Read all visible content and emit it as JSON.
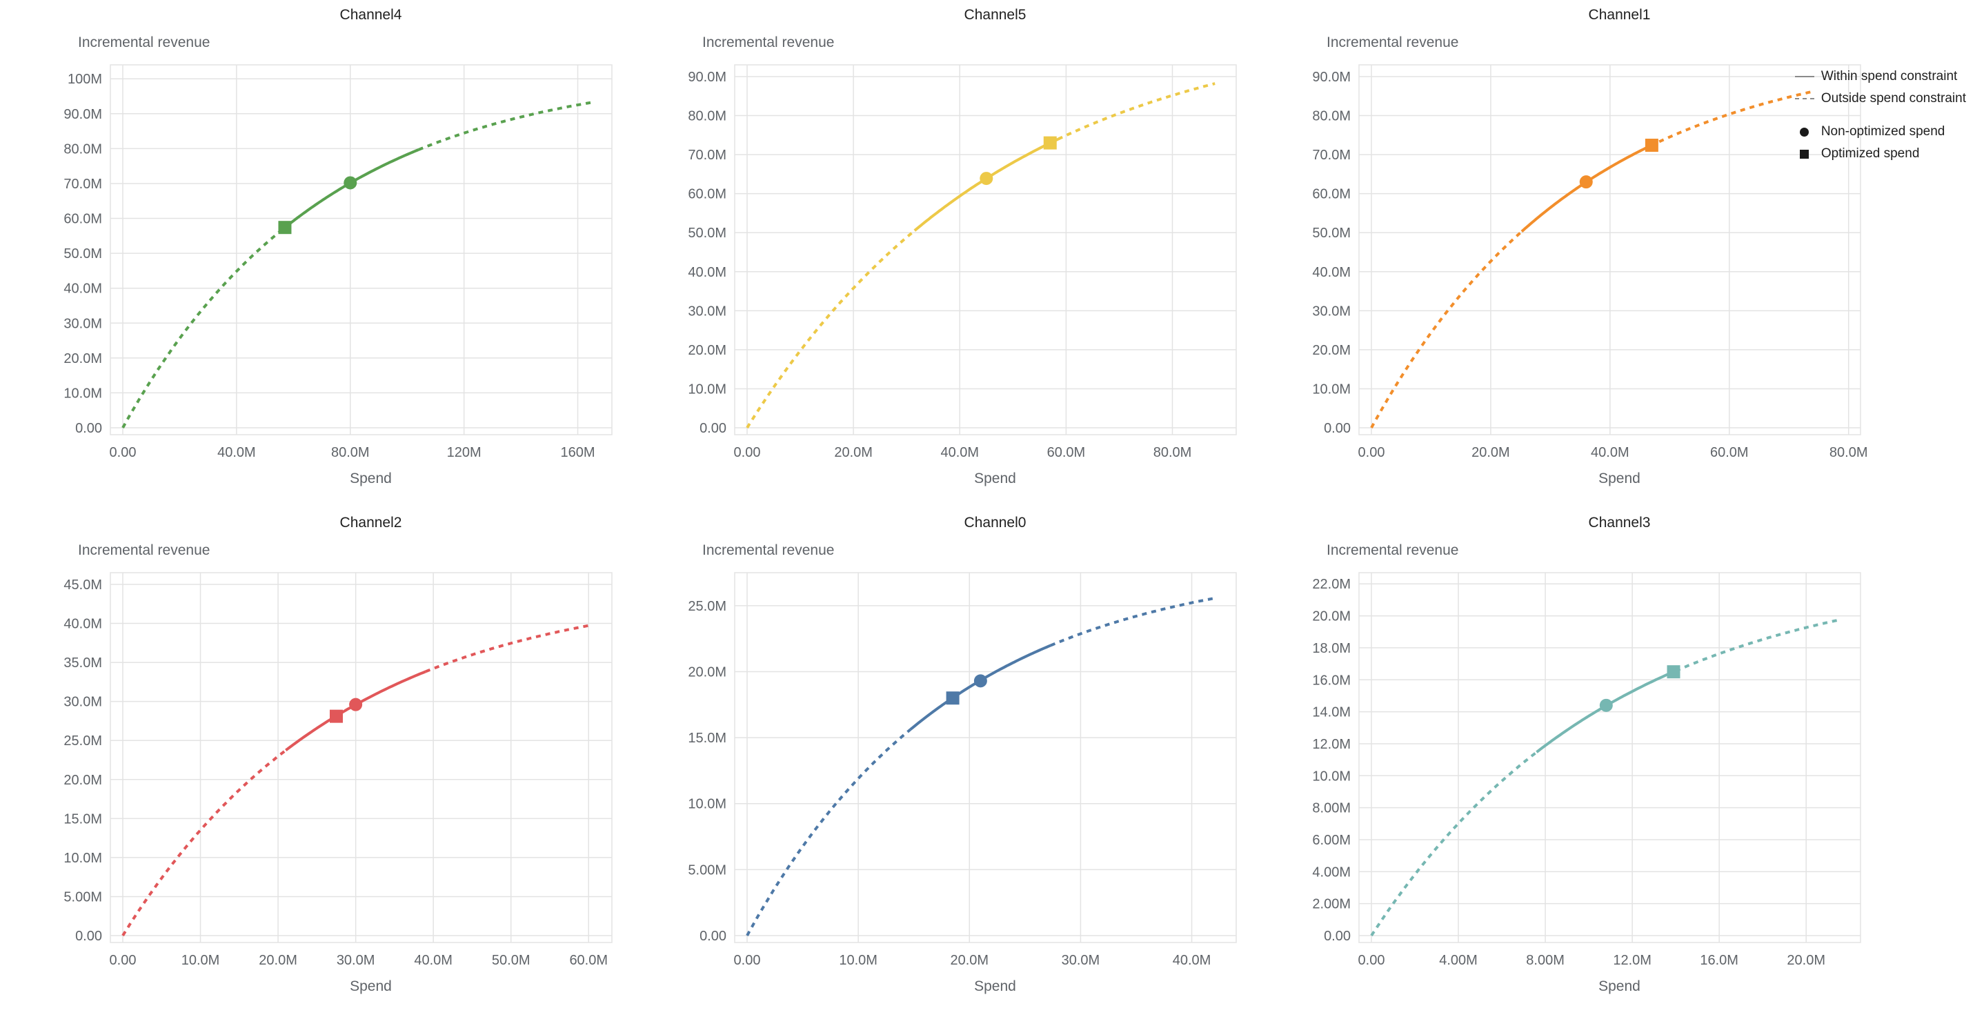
{
  "legend": {
    "items": [
      {
        "label": "Within spend constraint",
        "swatch": "solid-line"
      },
      {
        "label": "Outside spend constraint",
        "swatch": "dashed-line"
      },
      {
        "label": "Non-optimized spend",
        "swatch": "filled-circle"
      },
      {
        "label": "Optimized spend",
        "swatch": "filled-square"
      }
    ]
  },
  "styles": {
    "grid_color": "#e3e3e3",
    "axis_text_color": "#5f6368",
    "title_color": "#1f1f1f",
    "legend_line_color": "#8a8a8a",
    "marker_color": "#1a1a1a"
  },
  "chart_data": [
    {
      "type": "line",
      "title": "Channel4",
      "color": "#59a14f",
      "xlabel": "Spend",
      "ylabel": "Incremental revenue",
      "units": "M",
      "xlim": [
        0,
        172
      ],
      "ylim": [
        0,
        104
      ],
      "x_ticks": [
        0,
        40,
        80,
        120,
        160
      ],
      "y_ticks": [
        0,
        10,
        20,
        30,
        40,
        50,
        60,
        70,
        80,
        90,
        100
      ],
      "curve": {
        "model": "y = A*(1-exp(-x/T))",
        "A": 103,
        "T": 70,
        "x_end": 165,
        "y_at_x_end": 93.2
      },
      "solid_range": [
        56,
        104
      ],
      "markers": {
        "non_optimized_spend": {
          "shape": "circle",
          "x": 80,
          "y": 70.2
        },
        "optimized_spend": {
          "shape": "square",
          "x": 57,
          "y": 57.4
        }
      }
    },
    {
      "type": "line",
      "title": "Channel5",
      "color": "#edc948",
      "xlabel": "Spend",
      "ylabel": "Incremental revenue",
      "units": "M",
      "xlim": [
        0,
        92
      ],
      "ylim": [
        0,
        93
      ],
      "x_ticks": [
        0,
        20,
        40,
        60,
        80
      ],
      "y_ticks": [
        0,
        10,
        20,
        30,
        40,
        50,
        60,
        70,
        80,
        90
      ],
      "curve": {
        "model": "y = A*(1-exp(-x/T))",
        "A": 105,
        "T": 48,
        "x_end": 88,
        "y_at_x_end": 88.2
      },
      "solid_range": [
        31.5,
        58.5
      ],
      "markers": {
        "non_optimized_spend": {
          "shape": "circle",
          "x": 45,
          "y": 63.9
        },
        "optimized_spend": {
          "shape": "square",
          "x": 57,
          "y": 73.0
        }
      }
    },
    {
      "type": "line",
      "title": "Channel1",
      "color": "#f28e2b",
      "xlabel": "Spend",
      "ylabel": "Incremental revenue",
      "units": "M",
      "xlim": [
        0,
        82
      ],
      "ylim": [
        0,
        93
      ],
      "x_ticks": [
        0,
        20,
        40,
        60,
        80
      ],
      "y_ticks": [
        0,
        10,
        20,
        30,
        40,
        50,
        60,
        70,
        80,
        90
      ],
      "curve": {
        "model": "y = A*(1-exp(-x/T))",
        "A": 98,
        "T": 35,
        "x_end": 74,
        "y_at_x_end": 86.2
      },
      "solid_range": [
        25.2,
        46.8
      ],
      "markers": {
        "non_optimized_spend": {
          "shape": "circle",
          "x": 36,
          "y": 63.0
        },
        "optimized_spend": {
          "shape": "square",
          "x": 47,
          "y": 72.4
        }
      }
    },
    {
      "type": "line",
      "title": "Channel2",
      "color": "#e15759",
      "xlabel": "Spend",
      "ylabel": "Incremental revenue",
      "units": "M",
      "xlim": [
        0,
        63
      ],
      "ylim": [
        0,
        46.5
      ],
      "x_ticks": [
        0,
        10,
        20,
        30,
        40,
        50,
        60
      ],
      "y_ticks": [
        0,
        5,
        10,
        15,
        20,
        25,
        30,
        35,
        40,
        45
      ],
      "curve": {
        "model": "y = A*(1-exp(-x/T))",
        "A": 45,
        "T": 28,
        "x_end": 60,
        "y_at_x_end": 39.7
      },
      "solid_range": [
        21,
        39
      ],
      "markers": {
        "non_optimized_spend": {
          "shape": "circle",
          "x": 30,
          "y": 29.6
        },
        "optimized_spend": {
          "shape": "square",
          "x": 27.5,
          "y": 28.1
        }
      }
    },
    {
      "type": "line",
      "title": "Channel0",
      "color": "#4e79a7",
      "xlabel": "Spend",
      "ylabel": "Incremental revenue",
      "units": "M",
      "xlim": [
        0,
        44
      ],
      "ylim": [
        0,
        27.5
      ],
      "x_ticks": [
        0,
        10,
        20,
        30,
        40
      ],
      "y_ticks": [
        0,
        5,
        10,
        15,
        20,
        25
      ],
      "curve": {
        "model": "y = A*(1-exp(-x/T))",
        "A": 28.5,
        "T": 18.5,
        "x_end": 42,
        "y_at_x_end": 25.6
      },
      "solid_range": [
        14.7,
        27.3
      ],
      "markers": {
        "non_optimized_spend": {
          "shape": "circle",
          "x": 21,
          "y": 19.3
        },
        "optimized_spend": {
          "shape": "square",
          "x": 18.5,
          "y": 18.0
        }
      }
    },
    {
      "type": "line",
      "title": "Channel3",
      "color": "#76b7b2",
      "xlabel": "Spend",
      "ylabel": "Incremental revenue",
      "units": "M",
      "xlim": [
        0,
        22.5
      ],
      "ylim": [
        0,
        22.7
      ],
      "x_ticks": [
        0,
        4,
        8,
        12,
        16,
        20
      ],
      "y_ticks": [
        0,
        2,
        4,
        6,
        8,
        10,
        12,
        14,
        16,
        18,
        20,
        22
      ],
      "curve": {
        "model": "y = A*(1-exp(-x/T))",
        "A": 23,
        "T": 11,
        "x_end": 21.5,
        "y_at_x_end": 19.7
      },
      "solid_range": [
        7.6,
        14.0
      ],
      "markers": {
        "non_optimized_spend": {
          "shape": "circle",
          "x": 10.8,
          "y": 14.4
        },
        "optimized_spend": {
          "shape": "square",
          "x": 13.9,
          "y": 16.5
        }
      }
    }
  ]
}
